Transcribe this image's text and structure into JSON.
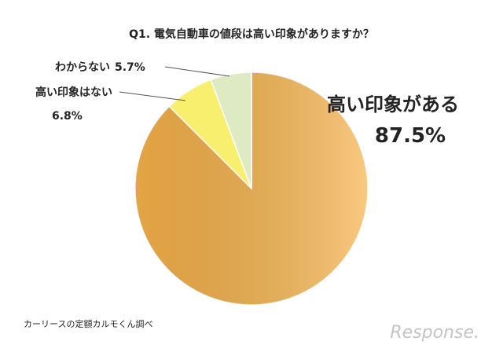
{
  "chart_data": {
    "type": "pie",
    "title": "Q1. 電気自動車の値段は高い印象がありますか？",
    "categories": [
      "高い印象がある",
      "高い印象はない",
      "わからない"
    ],
    "values": [
      87.5,
      6.8,
      5.7
    ],
    "value_labels": [
      "87.5%",
      "6.8%",
      "5.7%"
    ],
    "colors": [
      "#f6b24a",
      "#f8ef6e",
      "#deebc2"
    ],
    "source": "カーリースの定額カルモくん調べ",
    "watermark": "Response."
  }
}
